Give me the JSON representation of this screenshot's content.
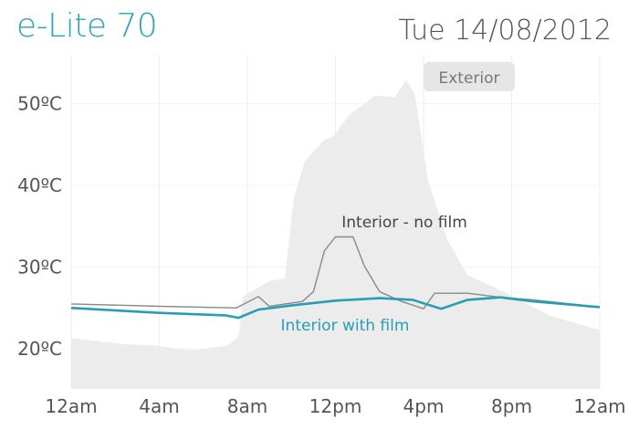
{
  "header": {
    "title": "e-Lite 70",
    "date": "Tue 14/08/2012"
  },
  "colors": {
    "exterior": "#ececec",
    "no_film": "#8a8a8a",
    "with_film": "#2a9db5",
    "title": "#2aa3b8"
  },
  "chart_data": {
    "type": "line",
    "xlabel": "",
    "ylabel": "",
    "x_ticks": [
      "12am",
      "4am",
      "8am",
      "12pm",
      "4pm",
      "8pm",
      "12am"
    ],
    "x_tick_hours": [
      0,
      4,
      8,
      12,
      16,
      20,
      24
    ],
    "y_ticks": [
      "20ºC",
      "30ºC",
      "40ºC",
      "50ºC"
    ],
    "y_tick_values": [
      20,
      30,
      40,
      50
    ],
    "xlim": [
      0,
      24
    ],
    "ylim": [
      15.2,
      56
    ],
    "grid": "vertical",
    "series": [
      {
        "name": "Exterior",
        "style": "area",
        "label_style": "box",
        "points": [
          [
            0,
            21.3
          ],
          [
            2.3,
            20.6
          ],
          [
            3.8,
            20.4
          ],
          [
            5.4,
            19.8
          ],
          [
            7.1,
            20.4
          ],
          [
            7.6,
            21.5
          ],
          [
            7.8,
            26.4
          ],
          [
            9,
            28.3
          ],
          [
            9.7,
            28.6
          ],
          [
            10.1,
            38.4
          ],
          [
            10.6,
            42.9
          ],
          [
            11.5,
            45.6
          ],
          [
            11.9,
            46
          ],
          [
            12.6,
            48.6
          ],
          [
            13.8,
            51
          ],
          [
            14.7,
            50.8
          ],
          [
            15.2,
            52.9
          ],
          [
            15.6,
            51.2
          ],
          [
            16.2,
            40.7
          ],
          [
            17.1,
            33.2
          ],
          [
            18,
            29
          ],
          [
            19.8,
            26.8
          ],
          [
            21.7,
            24.1
          ],
          [
            24,
            22.3
          ]
        ]
      },
      {
        "name": "Interior - no film",
        "style": "line",
        "points": [
          [
            0,
            25.5
          ],
          [
            4,
            25.2
          ],
          [
            7.5,
            25
          ],
          [
            8.5,
            26.4
          ],
          [
            9,
            25.2
          ],
          [
            10.5,
            25.8
          ],
          [
            11,
            27
          ],
          [
            11.5,
            32
          ],
          [
            12,
            33.7
          ],
          [
            12.8,
            33.7
          ],
          [
            13.3,
            30.2
          ],
          [
            14,
            27
          ],
          [
            15,
            25.8
          ],
          [
            16,
            24.9
          ],
          [
            16.5,
            26.8
          ],
          [
            18,
            26.8
          ],
          [
            19.5,
            26.3
          ],
          [
            21,
            26
          ],
          [
            24,
            25.1
          ]
        ]
      },
      {
        "name": "Interior with film",
        "style": "line",
        "points": [
          [
            0,
            25
          ],
          [
            4,
            24.4
          ],
          [
            7,
            24.1
          ],
          [
            7.6,
            23.8
          ],
          [
            8.5,
            24.8
          ],
          [
            10,
            25.3
          ],
          [
            12,
            25.9
          ],
          [
            14,
            26.2
          ],
          [
            15.5,
            26
          ],
          [
            16.8,
            24.9
          ],
          [
            18,
            26
          ],
          [
            19.5,
            26.3
          ],
          [
            21,
            25.8
          ],
          [
            24,
            25.1
          ]
        ]
      }
    ]
  }
}
